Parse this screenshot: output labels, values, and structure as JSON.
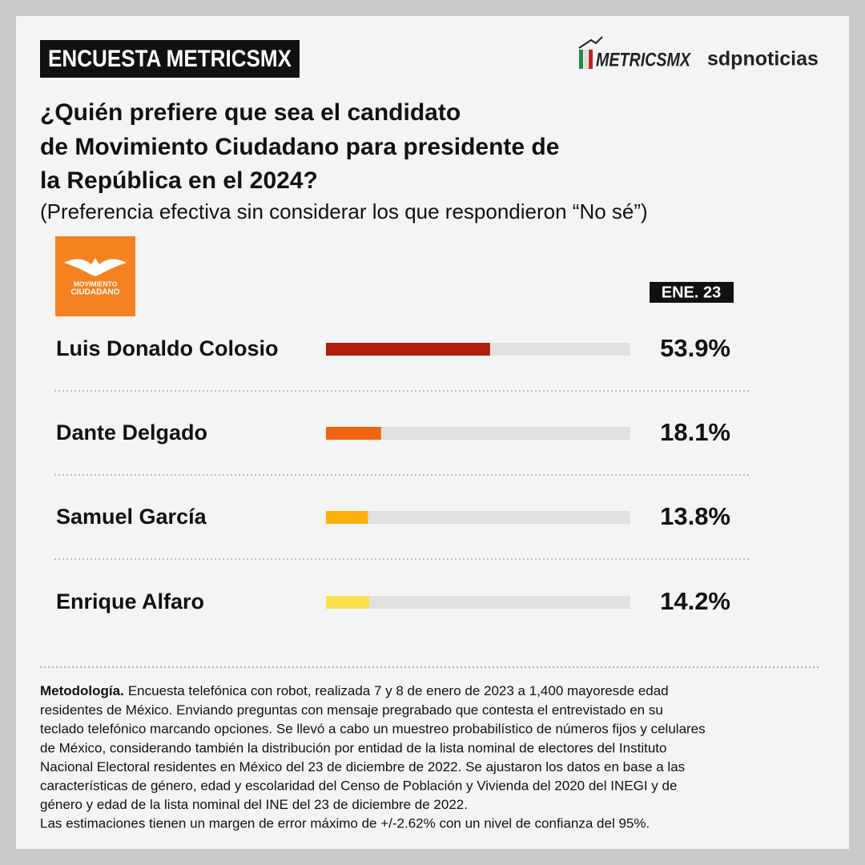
{
  "header": {
    "badge": "ENCUESTA METRICSMX",
    "logo_metrics": "METRICSMX",
    "logo_sdp": "sdpnoticias",
    "party_logo": [
      "MOVIMIENTO",
      "CIUDADANO"
    ]
  },
  "chart_data": {
    "type": "bar",
    "orientation": "horizontal",
    "title": [
      "¿Quién prefiere que sea el candidato",
      "de Movimiento Ciudadano para presidente de",
      "la República en el 2024?"
    ],
    "subtitle": "(Preferencia efectiva sin considerar los que respondieron “No sé”)",
    "period": "ENE. 23",
    "categories": [
      "Luis Donaldo Colosio",
      "Dante Delgado",
      "Samuel García",
      "Enrique Alfaro"
    ],
    "values": [
      53.9,
      18.1,
      13.8,
      14.2
    ],
    "value_labels": [
      "53.9%",
      "18.1%",
      "13.8%",
      "14.2%"
    ],
    "colors": [
      "#b01e0a",
      "#f26511",
      "#fbb00c",
      "#fbe04c"
    ],
    "track_color": "#e0e0e0",
    "xlim": [
      0,
      100
    ]
  },
  "methodology": {
    "heading": "Metodología.",
    "lines": [
      "Encuesta telefónica con robot, realizada 7 y 8 de enero de 2023 a 1,400 mayoresde edad",
      "residentes de México. Enviando preguntas con mensaje pregrabado que contesta el entrevistado en su",
      "teclado telefónico marcando opciones. Se llevó a cabo un muestreo probabilístico de números fijos y celulares",
      "de México, considerando también la distribución por entidad de la lista nominal de electores del Instituto",
      "Nacional Electoral residentes en México del 23 de diciembre de 2022. Se ajustaron los datos en base a las",
      "características de género, edad y escolaridad del Censo de Población y Vivienda del 2020 del INEGI y de",
      "género y edad de la lista nominal del INE del 23 de diciembre de 2022.",
      "Las estimaciones tienen un margen de error máximo de +/-2.62% con un nivel de confianza del 95%."
    ]
  }
}
